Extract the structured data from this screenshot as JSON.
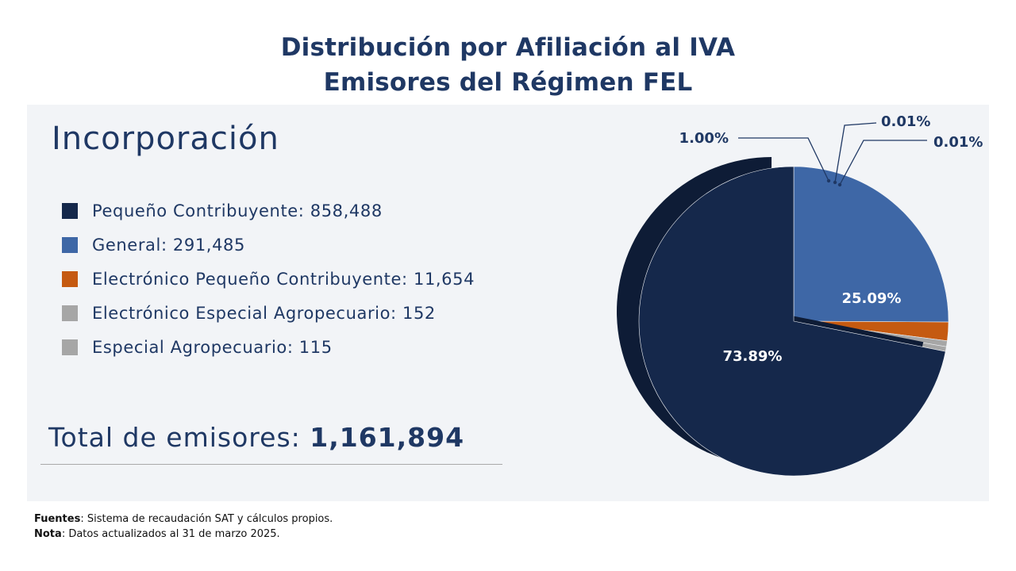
{
  "title": {
    "line1": "Distribución por Afiliación al IVA",
    "line2": "Emisores del Régimen FEL"
  },
  "section_heading": "Incorporación",
  "legend": [
    {
      "label": "Pequeño Contribuyente: 858,488",
      "color": "#15284b"
    },
    {
      "label": "General: 291,485",
      "color": "#3e67a6"
    },
    {
      "label": "Electrónico Pequeño Contribuyente: 11,654",
      "color": "#c55a11"
    },
    {
      "label": "Electrónico Especial Agropecuario: 152",
      "color": "#a6a6a6"
    },
    {
      "label": "Especial Agropecuario: 115",
      "color": "#a6a6a6"
    }
  ],
  "total": {
    "label": "Total de emisores:",
    "value": "1,161,894"
  },
  "notes": {
    "sources_label": "Fuentes",
    "sources_text": ": Sistema de recaudación SAT y cálculos propios.",
    "note_label": "Nota",
    "note_text": ": Datos actualizados al 31 de marzo 2025."
  },
  "chart_data": {
    "type": "pie",
    "series": [
      {
        "name": "Pequeño Contribuyente",
        "value": 858488,
        "label": "73.89%",
        "color": "#15284b"
      },
      {
        "name": "General",
        "value": 291485,
        "label": "25.09%",
        "color": "#3e67a6"
      },
      {
        "name": "Electrónico Pequeño Contribuyente",
        "value": 11654,
        "label": "1.00%",
        "color": "#c55a11"
      },
      {
        "name": "Electrónico Especial Agropecuario",
        "value": 152,
        "label": "0.01%",
        "color": "#a6a6a6"
      },
      {
        "name": "Especial Agropecuario",
        "value": 115,
        "label": "0.01%",
        "color": "#a6a6a6"
      }
    ]
  }
}
